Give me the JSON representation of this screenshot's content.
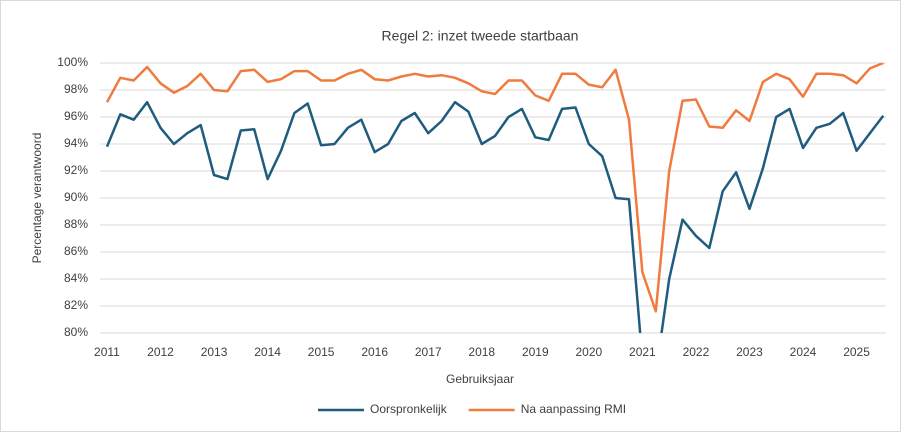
{
  "chart_data": {
    "type": "line",
    "title": "Regel 2: inzet tweede startbaan",
    "xlabel": "Gebruiksjaar",
    "ylabel": "Percentage verantwoord",
    "x": [
      2011,
      2011.25,
      2011.5,
      2011.75,
      2012,
      2012.25,
      2012.5,
      2012.75,
      2013,
      2013.25,
      2013.5,
      2013.75,
      2014,
      2014.25,
      2014.5,
      2014.75,
      2015,
      2015.25,
      2015.5,
      2015.75,
      2016,
      2016.25,
      2016.5,
      2016.75,
      2017,
      2017.25,
      2017.5,
      2017.75,
      2018,
      2018.25,
      2018.5,
      2018.75,
      2019,
      2019.25,
      2019.5,
      2019.75,
      2020,
      2020.25,
      2020.5,
      2020.75,
      2021,
      2021.25,
      2021.5,
      2021.75,
      2022,
      2022.25,
      2022.5,
      2022.75,
      2023,
      2023.25,
      2023.5,
      2023.75,
      2024,
      2024.25,
      2024.5,
      2024.75,
      2025,
      2025.25,
      2025.5
    ],
    "series": [
      {
        "name": "Oorspronkelijk",
        "color": "#1f5c7e",
        "values": [
          93.8,
          96.2,
          95.8,
          97.1,
          95.2,
          94.0,
          94.8,
          95.4,
          91.7,
          91.4,
          95.0,
          95.1,
          91.4,
          93.5,
          96.3,
          97.0,
          93.9,
          94.0,
          95.2,
          95.8,
          93.4,
          94.0,
          95.7,
          96.3,
          94.8,
          95.7,
          97.1,
          96.4,
          94.0,
          94.6,
          96.0,
          96.6,
          94.5,
          94.3,
          96.6,
          96.7,
          94.0,
          93.1,
          90.0,
          89.9,
          78.0,
          77.0,
          84.0,
          88.4,
          87.2,
          86.3,
          90.5,
          91.9,
          89.2,
          92.2,
          96.0,
          96.6,
          93.7,
          95.2,
          95.5,
          96.3,
          93.5,
          94.8,
          96.1
        ]
      },
      {
        "name": "Na aanpassing RMI",
        "color": "#f07b3f",
        "values": [
          97.1,
          98.9,
          98.7,
          99.7,
          98.5,
          97.8,
          98.3,
          99.2,
          98.0,
          97.9,
          99.4,
          99.5,
          98.6,
          98.8,
          99.4,
          99.4,
          98.7,
          98.7,
          99.2,
          99.5,
          98.8,
          98.7,
          99.0,
          99.2,
          99.0,
          99.1,
          98.9,
          98.5,
          97.9,
          97.7,
          98.7,
          98.7,
          97.6,
          97.2,
          99.2,
          99.2,
          98.4,
          98.2,
          99.5,
          95.8,
          84.5,
          81.6,
          92.0,
          97.2,
          97.3,
          95.3,
          95.2,
          96.5,
          95.7,
          98.6,
          99.2,
          98.8,
          97.5,
          99.2,
          99.2,
          99.1,
          98.5,
          99.6,
          100.0
        ]
      }
    ],
    "xlim": [
      2010.87,
      2025.55
    ],
    "xticks": [
      2011,
      2012,
      2013,
      2014,
      2015,
      2016,
      2017,
      2018,
      2019,
      2020,
      2021,
      2022,
      2023,
      2024,
      2025
    ],
    "ylim": [
      80,
      100
    ],
    "yticks": [
      {
        "value": 80,
        "label": "80%"
      },
      {
        "value": 82,
        "label": "82%"
      },
      {
        "value": 84,
        "label": "84%"
      },
      {
        "value": 86,
        "label": "86%"
      },
      {
        "value": 88,
        "label": "88%"
      },
      {
        "value": 90,
        "label": "90%"
      },
      {
        "value": 92,
        "label": "92%"
      },
      {
        "value": 94,
        "label": "94%"
      },
      {
        "value": 96,
        "label": "96%"
      },
      {
        "value": 98,
        "label": "98%"
      },
      {
        "value": 100,
        "label": "100%"
      }
    ],
    "grid": true,
    "legend": "bottom"
  }
}
